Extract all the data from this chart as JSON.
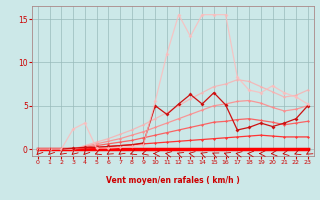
{
  "xlabel": "Vent moyen/en rafales ( km/h )",
  "background_color": "#cce8e8",
  "grid_color": "#99bbbb",
  "xlim": [
    -0.5,
    23.5
  ],
  "ylim": [
    -0.8,
    16.5
  ],
  "yticks": [
    0,
    5,
    10,
    15
  ],
  "xticks": [
    0,
    1,
    2,
    3,
    4,
    5,
    6,
    7,
    8,
    9,
    10,
    11,
    12,
    13,
    14,
    15,
    16,
    17,
    18,
    19,
    20,
    21,
    22,
    23
  ],
  "lines": [
    {
      "x": [
        0,
        1,
        2,
        3,
        4,
        5,
        6,
        7,
        8,
        9,
        10,
        11,
        12,
        13,
        14,
        15,
        16,
        17,
        18,
        19,
        20,
        21,
        22,
        23
      ],
      "y": [
        0,
        0,
        0,
        0,
        0,
        0,
        0,
        0,
        0,
        0,
        0,
        0,
        0,
        0,
        0,
        0,
        0,
        0,
        0,
        0,
        0,
        0,
        0,
        0
      ],
      "color": "#ff0000",
      "lw": 2.5,
      "marker": "D",
      "ms": 1.5,
      "alpha": 1.0
    },
    {
      "x": [
        0,
        1,
        2,
        3,
        4,
        5,
        6,
        7,
        8,
        9,
        10,
        11,
        12,
        13,
        14,
        15,
        16,
        17,
        18,
        19,
        20,
        21,
        22,
        23
      ],
      "y": [
        0,
        0,
        0,
        0,
        0.1,
        0.2,
        0.3,
        0.4,
        0.5,
        0.6,
        0.7,
        0.8,
        0.9,
        1.0,
        1.1,
        1.2,
        1.3,
        1.4,
        1.5,
        1.6,
        1.5,
        1.4,
        1.4,
        1.4
      ],
      "color": "#ff3333",
      "lw": 0.9,
      "marker": "D",
      "ms": 1.5,
      "alpha": 1.0
    },
    {
      "x": [
        0,
        1,
        2,
        3,
        4,
        5,
        6,
        7,
        8,
        9,
        10,
        11,
        12,
        13,
        14,
        15,
        16,
        17,
        18,
        19,
        20,
        21,
        22,
        23
      ],
      "y": [
        0,
        0,
        0,
        0,
        0.2,
        0.4,
        0.6,
        0.8,
        1.0,
        1.3,
        1.6,
        1.9,
        2.2,
        2.5,
        2.8,
        3.1,
        3.2,
        3.4,
        3.5,
        3.3,
        3.1,
        2.8,
        3.0,
        3.2
      ],
      "color": "#ff5555",
      "lw": 0.9,
      "marker": "D",
      "ms": 1.5,
      "alpha": 0.9
    },
    {
      "x": [
        0,
        1,
        2,
        3,
        4,
        5,
        6,
        7,
        8,
        9,
        10,
        11,
        12,
        13,
        14,
        15,
        16,
        17,
        18,
        19,
        20,
        21,
        22,
        23
      ],
      "y": [
        0,
        0,
        0,
        0,
        0.3,
        0.6,
        0.9,
        1.2,
        1.6,
        2.0,
        2.5,
        3.0,
        3.5,
        4.0,
        4.5,
        5.0,
        5.2,
        5.5,
        5.6,
        5.3,
        4.8,
        4.4,
        4.6,
        5.0
      ],
      "color": "#ff8888",
      "lw": 0.9,
      "marker": "D",
      "ms": 1.5,
      "alpha": 0.85
    },
    {
      "x": [
        0,
        1,
        2,
        3,
        4,
        5,
        6,
        7,
        8,
        9,
        10,
        11,
        12,
        13,
        14,
        15,
        16,
        17,
        18,
        19,
        20,
        21,
        22,
        23
      ],
      "y": [
        0,
        0,
        0,
        0,
        0.4,
        0.8,
        1.2,
        1.7,
        2.2,
        2.8,
        3.5,
        4.2,
        5.0,
        5.8,
        6.5,
        7.2,
        7.5,
        8.0,
        7.8,
        7.2,
        6.6,
        6.0,
        6.2,
        6.8
      ],
      "color": "#ffaaaa",
      "lw": 0.9,
      "marker": "D",
      "ms": 1.5,
      "alpha": 0.75
    },
    {
      "x": [
        0,
        1,
        2,
        3,
        4,
        5,
        6,
        7,
        8,
        9,
        10,
        11,
        12,
        13,
        14,
        15,
        16,
        17,
        18,
        19,
        20,
        21,
        22,
        23
      ],
      "y": [
        0,
        0,
        0,
        0.1,
        0.2,
        0.2,
        0.3,
        0.4,
        0.5,
        0.7,
        5.0,
        4.0,
        5.2,
        6.3,
        5.2,
        6.5,
        5.1,
        2.2,
        2.5,
        3.0,
        2.6,
        3.0,
        3.5,
        5.0
      ],
      "color": "#cc1111",
      "lw": 0.9,
      "marker": "D",
      "ms": 2.0,
      "alpha": 1.0
    },
    {
      "x": [
        0,
        1,
        2,
        3,
        4,
        5,
        6,
        7,
        8,
        9,
        10,
        11,
        12,
        13,
        14,
        15,
        16,
        17,
        18,
        19,
        20,
        21,
        22,
        23
      ],
      "y": [
        0,
        0,
        0,
        2.3,
        3.0,
        0.1,
        0.1,
        0.2,
        0.3,
        0.5,
        5.5,
        11.0,
        15.5,
        13.0,
        15.5,
        15.5,
        15.5,
        8.3,
        6.8,
        6.5,
        7.3,
        6.5,
        6.0,
        5.2
      ],
      "color": "#ffbbbb",
      "lw": 0.9,
      "marker": "D",
      "ms": 2.0,
      "alpha": 0.8
    }
  ],
  "arrow_color": "#cc0000",
  "arrow_angles": [
    225,
    225,
    215,
    220,
    225,
    200,
    210,
    215,
    200,
    195,
    180,
    170,
    160,
    170,
    160,
    155,
    160,
    170,
    175,
    180,
    185,
    190,
    200,
    210
  ]
}
